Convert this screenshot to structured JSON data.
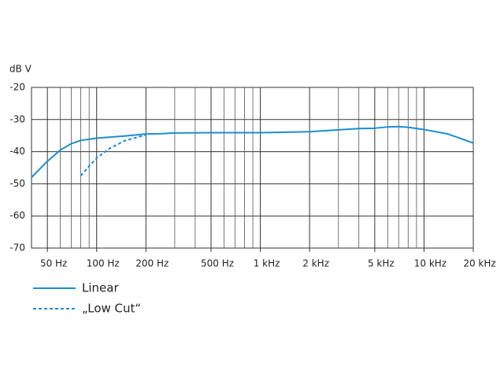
{
  "chart_data": {
    "type": "line",
    "y_label": "dB V",
    "log_x": true,
    "grid": true,
    "xlim": [
      40,
      20000
    ],
    "ylim": [
      -70,
      -20
    ],
    "xticks": [
      {
        "value": 50,
        "label": "50 Hz"
      },
      {
        "value": 100,
        "label": "100 Hz"
      },
      {
        "value": 200,
        "label": "200 Hz"
      },
      {
        "value": 500,
        "label": "500 Hz"
      },
      {
        "value": 1000,
        "label": "1 kHz"
      },
      {
        "value": 2000,
        "label": "2 kHz"
      },
      {
        "value": 5000,
        "label": "5 kHz"
      },
      {
        "value": 10000,
        "label": "10 kHz"
      },
      {
        "value": 20000,
        "label": "20 kHz"
      }
    ],
    "xminor": [
      60,
      70,
      80,
      90,
      300,
      400,
      600,
      700,
      800,
      900,
      3000,
      4000,
      6000,
      7000,
      8000,
      9000
    ],
    "yticks": [
      -20,
      -30,
      -40,
      -50,
      -60,
      -70
    ],
    "series": [
      {
        "name": "Linear",
        "color": "#1a8fd0",
        "dash": false,
        "x": [
          40,
          50,
          60,
          70,
          80,
          100,
          150,
          200,
          250,
          300,
          500,
          1000,
          2000,
          3000,
          4000,
          5000,
          6000,
          7000,
          8000,
          10000,
          14000,
          20000
        ],
        "values": [
          -48,
          -43,
          -39.5,
          -37.5,
          -36.5,
          -35.8,
          -35.1,
          -34.5,
          -34.4,
          -34.2,
          -34.1,
          -34.1,
          -33.8,
          -33.2,
          -32.8,
          -32.7,
          -32.3,
          -32.2,
          -32.4,
          -33.1,
          -34.5,
          -37.3
        ]
      },
      {
        "name": "„Low Cut“",
        "color": "#1a8fd0",
        "dash": true,
        "x": [
          80,
          90,
          100,
          120,
          150,
          200
        ],
        "values": [
          -47.5,
          -44.5,
          -42,
          -39,
          -36.5,
          -34.8
        ]
      }
    ]
  }
}
